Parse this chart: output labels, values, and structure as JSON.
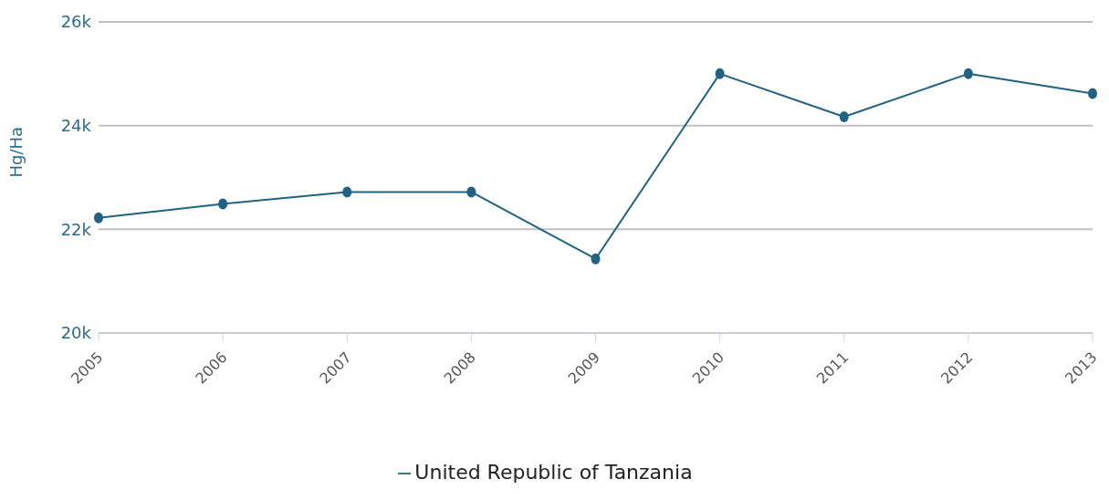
{
  "chart_data": {
    "type": "line",
    "ylabel": "Hg/Ha",
    "categories": [
      "2005",
      "2006",
      "2007",
      "2008",
      "2009",
      "2010",
      "2011",
      "2012",
      "2013"
    ],
    "series": [
      {
        "name": "United Republic of Tanzania",
        "color": "#1f6285",
        "values": [
          22220,
          22490,
          22720,
          22720,
          21430,
          25000,
          24170,
          25000,
          24620
        ]
      }
    ],
    "ylim": [
      20000,
      26000
    ],
    "yticks": [
      {
        "value": 20000,
        "label": "20k"
      },
      {
        "value": 22000,
        "label": "22k"
      },
      {
        "value": 24000,
        "label": "24k"
      },
      {
        "value": 26000,
        "label": "26k"
      }
    ],
    "grid": "y",
    "legend": "bottom",
    "marker": "circle",
    "line_style": "solid"
  }
}
